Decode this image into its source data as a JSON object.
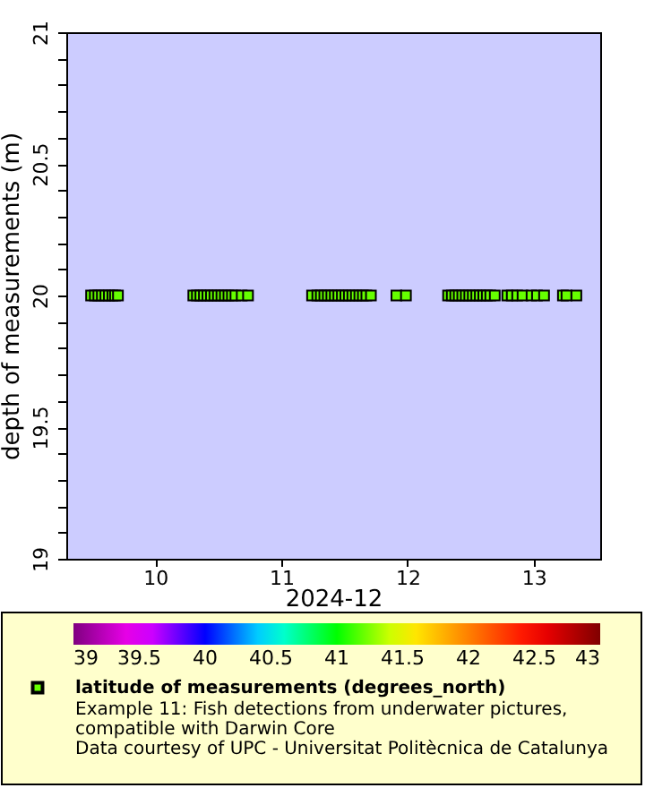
{
  "chart_data": {
    "type": "scatter",
    "xlabel": "2024-12",
    "ylabel": "depth of measurements (m)",
    "annotations": [
      "Example 11: Fish detections from underwater pictures,",
      "compatible with Darwin Core",
      "Data courtesy of UPC - Universitat Politècnica de Catalunya"
    ],
    "marker": "square",
    "grid": false,
    "legend": "bottom",
    "xlim": [
      "2024-12-09T07:04",
      "2024-12-13T12:40"
    ],
    "xticks": [
      {
        "value": "2024-12-10",
        "label": "10"
      },
      {
        "value": "2024-12-11",
        "label": "11"
      },
      {
        "value": "2024-12-12",
        "label": "12"
      },
      {
        "value": "2024-12-13",
        "label": "13"
      }
    ],
    "ylim": [
      19,
      21
    ],
    "yticks": [
      19,
      {
        "value": 19.1,
        "label": null
      },
      {
        "value": 19.2,
        "label": null
      },
      {
        "value": 19.3,
        "label": null
      },
      {
        "value": 19.4,
        "label": null
      },
      19.5,
      {
        "value": 19.6,
        "label": null
      },
      {
        "value": 19.7,
        "label": null
      },
      {
        "value": 19.8,
        "label": null
      },
      {
        "value": 19.9,
        "label": null
      },
      20,
      {
        "value": 20.1,
        "label": null
      },
      {
        "value": 20.2,
        "label": null
      },
      {
        "value": 20.3,
        "label": null
      },
      {
        "value": 20.4,
        "label": null
      },
      20.5,
      {
        "value": 20.6,
        "label": null
      },
      {
        "value": 20.7,
        "label": null
      },
      {
        "value": 20.8,
        "label": null
      },
      {
        "value": 20.9,
        "label": null
      },
      21
    ],
    "clim": [
      39,
      43
    ],
    "cticks": [
      39,
      39.5,
      40,
      40.5,
      41,
      41.5,
      42,
      42.5,
      43
    ],
    "series": [
      {
        "name": "latitude of measurements (degrees_north)",
        "x": [
          "2024-12-09T11:47",
          "2024-12-09T12:30",
          "2024-12-09T13:10",
          "2024-12-09T13:50",
          "2024-12-09T14:30",
          "2024-12-09T15:10",
          "2024-12-09T15:50",
          "2024-12-09T16:20",
          "2024-12-09T16:54",
          "2024-12-10T07:14",
          "2024-12-10T07:55",
          "2024-12-10T08:35",
          "2024-12-10T09:15",
          "2024-12-10T09:55",
          "2024-12-10T10:35",
          "2024-12-10T11:15",
          "2024-12-10T11:55",
          "2024-12-10T12:35",
          "2024-12-10T13:15",
          "2024-12-10T13:55",
          "2024-12-10T14:35",
          "2024-12-10T15:15",
          "2024-12-10T16:27",
          "2024-12-10T17:39",
          "2024-12-11T05:50",
          "2024-12-11T06:50",
          "2024-12-11T07:30",
          "2024-12-11T08:10",
          "2024-12-11T08:50",
          "2024-12-11T09:30",
          "2024-12-11T10:10",
          "2024-12-11T10:50",
          "2024-12-11T11:30",
          "2024-12-11T12:10",
          "2024-12-11T12:50",
          "2024-12-11T13:30",
          "2024-12-11T14:10",
          "2024-12-11T14:50",
          "2024-12-11T15:30",
          "2024-12-11T16:10",
          "2024-12-11T17:02",
          "2024-12-11T21:53",
          "2024-12-11T23:42",
          "2024-12-12T07:43",
          "2024-12-12T08:25",
          "2024-12-12T09:05",
          "2024-12-12T09:45",
          "2024-12-12T10:25",
          "2024-12-12T11:05",
          "2024-12-12T11:45",
          "2024-12-12T12:25",
          "2024-12-12T13:05",
          "2024-12-12T13:45",
          "2024-12-12T14:25",
          "2024-12-12T15:05",
          "2024-12-12T15:45",
          "2024-12-12T16:36",
          "2024-12-12T18:59",
          "2024-12-12T19:50",
          "2024-12-12T20:52",
          "2024-12-12T21:53",
          "2024-12-12T23:36",
          "2024-12-13T00:38",
          "2024-12-13T01:59",
          "2024-12-13T05:34",
          "2024-12-13T06:15",
          "2024-12-13T08:08"
        ],
        "values": [
          20,
          20,
          20,
          20,
          20,
          20,
          20,
          20,
          20,
          20,
          20,
          20,
          20,
          20,
          20,
          20,
          20,
          20,
          20,
          20,
          20,
          20,
          20,
          20,
          20,
          20,
          20,
          20,
          20,
          20,
          20,
          20,
          20,
          20,
          20,
          20,
          20,
          20,
          20,
          20,
          20,
          20,
          20,
          20,
          20,
          20,
          20,
          20,
          20,
          20,
          20,
          20,
          20,
          20,
          20,
          20,
          20,
          20,
          20,
          20,
          20,
          20,
          20,
          20,
          20,
          20,
          20
        ],
        "cvalues": [
          41.2,
          41.2,
          41.2,
          41.2,
          41.2,
          41.2,
          41.2,
          41.2,
          41.2,
          41.2,
          41.2,
          41.2,
          41.2,
          41.2,
          41.2,
          41.2,
          41.2,
          41.2,
          41.2,
          41.2,
          41.2,
          41.2,
          41.2,
          41.2,
          41.2,
          41.2,
          41.2,
          41.2,
          41.2,
          41.2,
          41.2,
          41.2,
          41.2,
          41.2,
          41.2,
          41.2,
          41.2,
          41.2,
          41.2,
          41.2,
          41.2,
          41.2,
          41.2,
          41.2,
          41.2,
          41.2,
          41.2,
          41.2,
          41.2,
          41.2,
          41.2,
          41.2,
          41.2,
          41.2,
          41.2,
          41.2,
          41.2,
          41.2,
          41.2,
          41.2,
          41.2,
          41.2,
          41.2,
          41.2,
          41.2,
          41.2,
          41.2
        ]
      }
    ]
  }
}
